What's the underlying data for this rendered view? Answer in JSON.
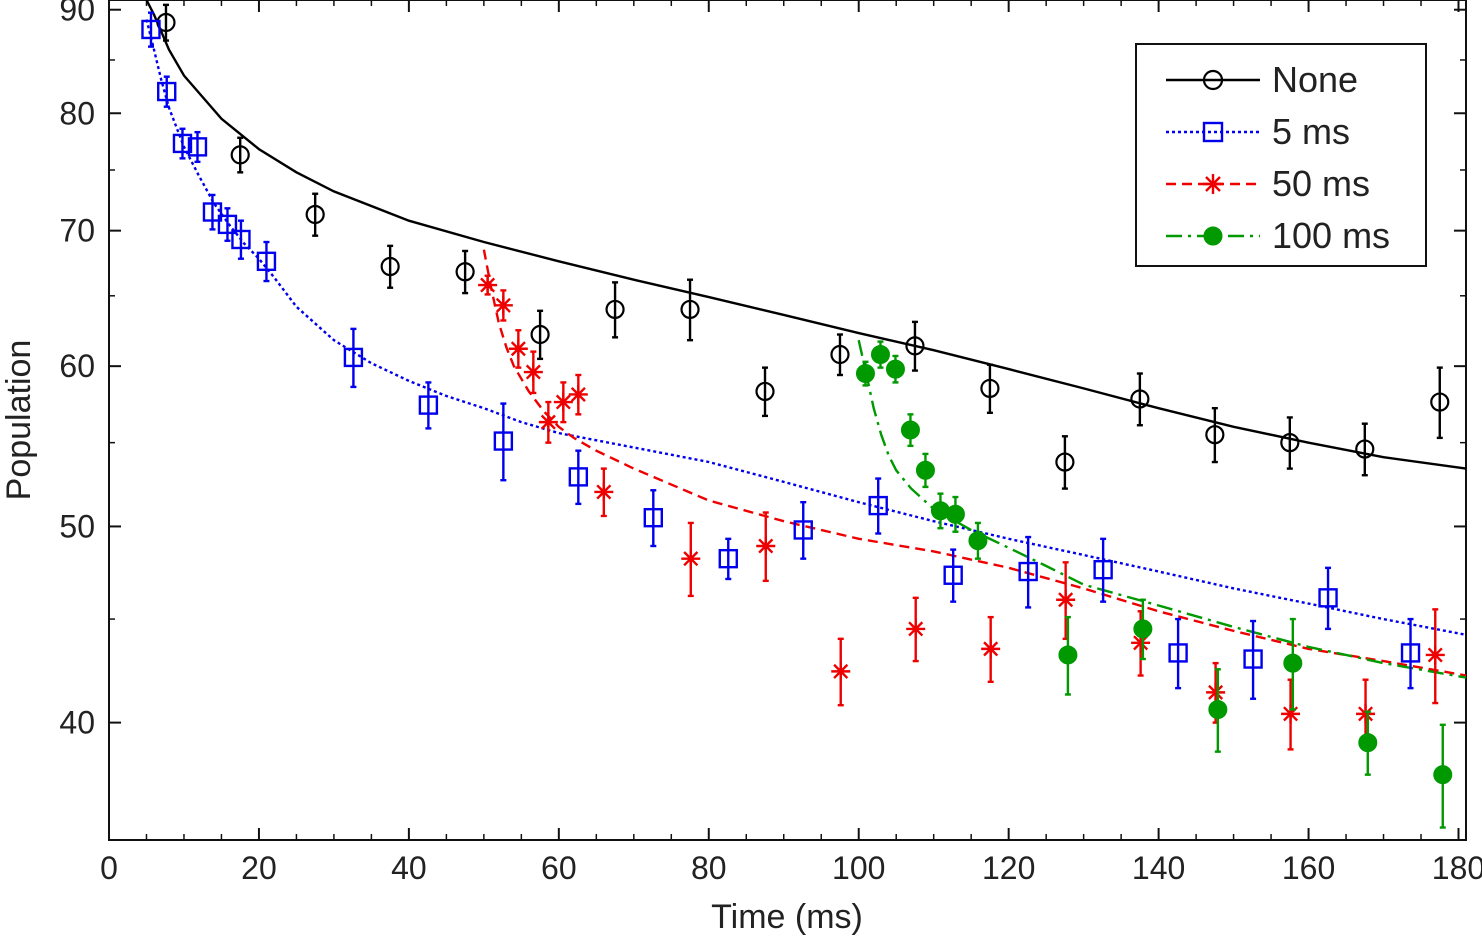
{
  "chart_data": {
    "type": "scatter",
    "title": "",
    "xlabel": "Time (ms)",
    "ylabel": "Population",
    "xlim": [
      0,
      181
    ],
    "ylim": [
      35,
      91
    ],
    "y_scale": "log",
    "x_ticks": [
      0,
      20,
      40,
      60,
      80,
      100,
      120,
      140,
      160,
      180
    ],
    "y_ticks": [
      40,
      50,
      60,
      70,
      80,
      90
    ],
    "legend_position": "top-right",
    "grid": false,
    "series": [
      {
        "name": "None",
        "color": "#000000",
        "marker": "open-circle",
        "line_style": "solid",
        "points": [
          {
            "x": 7.6,
            "y": 88.7,
            "err": 1.8
          },
          {
            "x": 17.5,
            "y": 76.3,
            "err": 1.5
          },
          {
            "x": 27.5,
            "y": 71.3,
            "err": 1.7
          },
          {
            "x": 37.5,
            "y": 67.2,
            "err": 1.6
          },
          {
            "x": 47.5,
            "y": 66.8,
            "err": 1.6
          },
          {
            "x": 57.5,
            "y": 62.2,
            "err": 1.7
          },
          {
            "x": 67.5,
            "y": 64.0,
            "err": 2.0
          },
          {
            "x": 77.5,
            "y": 64.0,
            "err": 2.2
          },
          {
            "x": 87.5,
            "y": 58.3,
            "err": 1.6
          },
          {
            "x": 97.5,
            "y": 60.8,
            "err": 1.4
          },
          {
            "x": 107.5,
            "y": 61.4,
            "err": 1.7
          },
          {
            "x": 117.5,
            "y": 58.5,
            "err": 1.6
          },
          {
            "x": 127.5,
            "y": 53.8,
            "err": 1.6
          },
          {
            "x": 137.5,
            "y": 57.8,
            "err": 1.7
          },
          {
            "x": 147.5,
            "y": 55.5,
            "err": 1.7
          },
          {
            "x": 157.5,
            "y": 55.0,
            "err": 1.6
          },
          {
            "x": 167.5,
            "y": 54.6,
            "err": 1.6
          },
          {
            "x": 177.5,
            "y": 57.6,
            "err": 2.3
          }
        ],
        "fit": [
          [
            5,
            91
          ],
          [
            6,
            89.5
          ],
          [
            8,
            86
          ],
          [
            10,
            83.5
          ],
          [
            15,
            79.5
          ],
          [
            20,
            76.8
          ],
          [
            25,
            74.8
          ],
          [
            30,
            73.2
          ],
          [
            40,
            70.8
          ],
          [
            50,
            69.1
          ],
          [
            60,
            67.6
          ],
          [
            70,
            66.2
          ],
          [
            80,
            64.9
          ],
          [
            90,
            63.6
          ],
          [
            100,
            62.3
          ],
          [
            110,
            61.1
          ],
          [
            120,
            59.8
          ],
          [
            130,
            58.5
          ],
          [
            140,
            57.2
          ],
          [
            150,
            56.0
          ],
          [
            160,
            55.0
          ],
          [
            170,
            54.1
          ],
          [
            181,
            53.4
          ]
        ]
      },
      {
        "name": "5 ms",
        "color": "#0000ee",
        "marker": "open-square",
        "line_style": "dotted",
        "points": [
          {
            "x": 5.6,
            "y": 88.0,
            "err": 1.7
          },
          {
            "x": 7.7,
            "y": 82.0,
            "err": 1.4
          },
          {
            "x": 9.8,
            "y": 77.3,
            "err": 1.3
          },
          {
            "x": 11.8,
            "y": 77.0,
            "err": 1.3
          },
          {
            "x": 13.8,
            "y": 71.5,
            "err": 1.4
          },
          {
            "x": 15.8,
            "y": 70.5,
            "err": 1.3
          },
          {
            "x": 17.6,
            "y": 69.3,
            "err": 1.5
          },
          {
            "x": 21.0,
            "y": 67.6,
            "err": 1.5
          },
          {
            "x": 32.6,
            "y": 60.6,
            "err": 2.0
          },
          {
            "x": 42.6,
            "y": 57.4,
            "err": 1.5
          },
          {
            "x": 52.6,
            "y": 55.1,
            "err": 2.4
          },
          {
            "x": 62.6,
            "y": 52.9,
            "err": 1.6
          },
          {
            "x": 72.6,
            "y": 50.5,
            "err": 1.6
          },
          {
            "x": 82.6,
            "y": 48.2,
            "err": 1.1
          },
          {
            "x": 92.6,
            "y": 49.8,
            "err": 1.6
          },
          {
            "x": 102.6,
            "y": 51.2,
            "err": 1.6
          },
          {
            "x": 112.6,
            "y": 47.3,
            "err": 1.4
          },
          {
            "x": 122.6,
            "y": 47.5,
            "err": 1.9
          },
          {
            "x": 132.6,
            "y": 47.6,
            "err": 1.7
          },
          {
            "x": 142.6,
            "y": 43.3,
            "err": 1.7
          },
          {
            "x": 152.6,
            "y": 43.0,
            "err": 1.9
          },
          {
            "x": 162.6,
            "y": 46.1,
            "err": 1.6
          },
          {
            "x": 173.6,
            "y": 43.3,
            "err": 1.7
          }
        ],
        "fit": [
          [
            5,
            89
          ],
          [
            6,
            86
          ],
          [
            7,
            83
          ],
          [
            8,
            80.5
          ],
          [
            10,
            77
          ],
          [
            12,
            74.5
          ],
          [
            14,
            72.2
          ],
          [
            16,
            70.5
          ],
          [
            18,
            69
          ],
          [
            20,
            67.8
          ],
          [
            22,
            66.4
          ],
          [
            25,
            64.2
          ],
          [
            30,
            61.8
          ],
          [
            35,
            60.2
          ],
          [
            40,
            59
          ],
          [
            45,
            58
          ],
          [
            50,
            57.2
          ],
          [
            55,
            56.3
          ],
          [
            60,
            55.6
          ],
          [
            70,
            54.7
          ],
          [
            80,
            53.8
          ],
          [
            90,
            52.6
          ],
          [
            100,
            51.4
          ],
          [
            110,
            50.3
          ],
          [
            120,
            49.3
          ],
          [
            130,
            48.4
          ],
          [
            140,
            47.5
          ],
          [
            150,
            46.6
          ],
          [
            160,
            45.8
          ],
          [
            170,
            45.0
          ],
          [
            181,
            44.2
          ]
        ]
      },
      {
        "name": "50 ms",
        "color": "#ee0000",
        "marker": "asterisk",
        "line_style": "dashed",
        "points": [
          {
            "x": 50.5,
            "y": 65.8,
            "err": 0.7
          },
          {
            "x": 52.6,
            "y": 64.3,
            "err": 1.1
          },
          {
            "x": 54.6,
            "y": 61.2,
            "err": 1.3
          },
          {
            "x": 56.6,
            "y": 59.6,
            "err": 1.4
          },
          {
            "x": 58.6,
            "y": 56.3,
            "err": 1.3
          },
          {
            "x": 60.6,
            "y": 57.6,
            "err": 1.3
          },
          {
            "x": 62.6,
            "y": 58.1,
            "err": 1.3
          },
          {
            "x": 66.0,
            "y": 52.0,
            "err": 1.4
          },
          {
            "x": 77.6,
            "y": 48.2,
            "err": 2.0
          },
          {
            "x": 87.6,
            "y": 48.9,
            "err": 1.9
          },
          {
            "x": 97.6,
            "y": 42.4,
            "err": 1.6
          },
          {
            "x": 107.6,
            "y": 44.5,
            "err": 1.6
          },
          {
            "x": 117.6,
            "y": 43.5,
            "err": 1.6
          },
          {
            "x": 127.6,
            "y": 46.0,
            "err": 2.0
          },
          {
            "x": 137.6,
            "y": 43.8,
            "err": 1.6
          },
          {
            "x": 147.6,
            "y": 41.4,
            "err": 1.4
          },
          {
            "x": 157.6,
            "y": 40.4,
            "err": 1.6
          },
          {
            "x": 167.6,
            "y": 40.4,
            "err": 1.6
          },
          {
            "x": 176.9,
            "y": 43.2,
            "err": 2.3
          }
        ],
        "fit": [
          [
            50,
            68.5
          ],
          [
            51,
            65.5
          ],
          [
            52,
            63
          ],
          [
            53,
            61.3
          ],
          [
            54,
            60
          ],
          [
            56,
            58.3
          ],
          [
            58,
            57
          ],
          [
            60,
            56
          ],
          [
            62,
            55.3
          ],
          [
            65,
            54.5
          ],
          [
            70,
            53.4
          ],
          [
            80,
            51.5
          ],
          [
            90,
            50.3
          ],
          [
            100,
            49.3
          ],
          [
            110,
            48.6
          ],
          [
            120,
            47.7
          ],
          [
            130,
            46.6
          ],
          [
            140,
            45.4
          ],
          [
            150,
            44.4
          ],
          [
            160,
            43.5
          ],
          [
            170,
            42.9
          ],
          [
            181,
            42.2
          ]
        ]
      },
      {
        "name": "100 ms",
        "color": "#009900",
        "marker": "filled-circle",
        "line_style": "dashdot",
        "points": [
          {
            "x": 100.9,
            "y": 59.5,
            "err": 0.8
          },
          {
            "x": 102.9,
            "y": 60.8,
            "err": 0.9
          },
          {
            "x": 104.9,
            "y": 59.8,
            "err": 0.9
          },
          {
            "x": 106.9,
            "y": 55.8,
            "err": 1.0
          },
          {
            "x": 108.9,
            "y": 53.3,
            "err": 1.0
          },
          {
            "x": 110.9,
            "y": 50.9,
            "err": 1.0
          },
          {
            "x": 112.9,
            "y": 50.7,
            "err": 1.0
          },
          {
            "x": 115.9,
            "y": 49.2,
            "err": 1.0
          },
          {
            "x": 127.9,
            "y": 43.2,
            "err": 1.9
          },
          {
            "x": 137.9,
            "y": 44.5,
            "err": 1.5
          },
          {
            "x": 147.9,
            "y": 40.6,
            "err": 1.9
          },
          {
            "x": 157.9,
            "y": 42.8,
            "err": 2.2
          },
          {
            "x": 167.9,
            "y": 39.1,
            "err": 1.4
          },
          {
            "x": 177.9,
            "y": 37.7,
            "err": 2.2
          }
        ],
        "fit": [
          [
            100,
            61.8
          ],
          [
            101,
            59.5
          ],
          [
            102,
            57.2
          ],
          [
            103,
            55.5
          ],
          [
            104,
            54.2
          ],
          [
            105,
            53.3
          ],
          [
            107,
            52.2
          ],
          [
            110,
            51
          ],
          [
            115,
            49.8
          ],
          [
            120,
            48.8
          ],
          [
            125,
            47.8
          ],
          [
            130,
            46.8
          ],
          [
            140,
            45.7
          ],
          [
            150,
            44.6
          ],
          [
            160,
            43.6
          ],
          [
            170,
            42.8
          ],
          [
            181,
            42.1
          ]
        ]
      }
    ]
  }
}
